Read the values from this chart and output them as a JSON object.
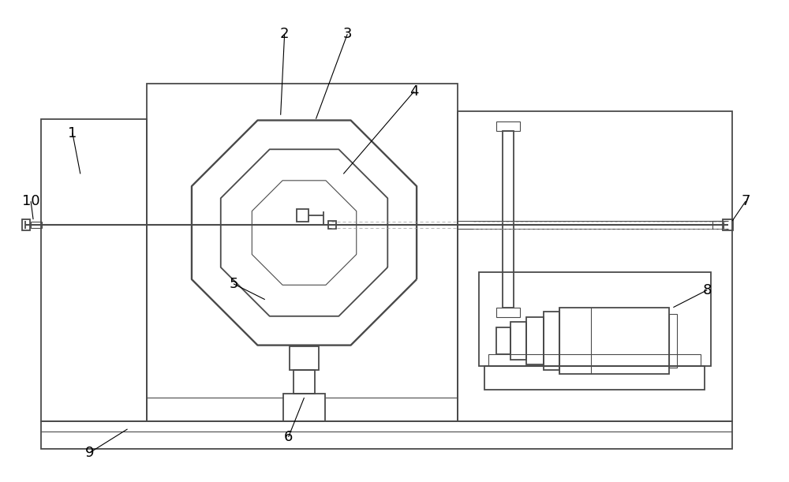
{
  "bg_color": "#ffffff",
  "line_color": "#4a4a4a",
  "label_color": "#000000",
  "lw_main": 1.3,
  "lw_thin": 0.8,
  "fig_width": 10.0,
  "fig_height": 6.11,
  "dpi": 100
}
